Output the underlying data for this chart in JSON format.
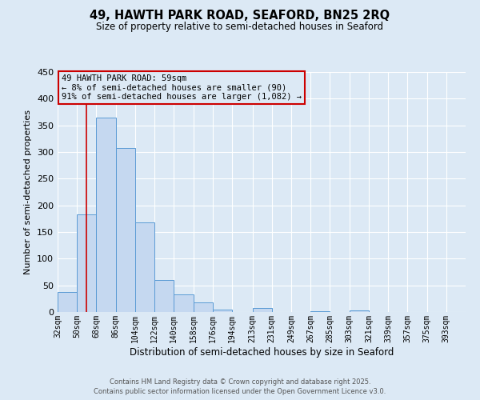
{
  "title": "49, HAWTH PARK ROAD, SEAFORD, BN25 2RQ",
  "subtitle": "Size of property relative to semi-detached houses in Seaford",
  "xlabel": "Distribution of semi-detached houses by size in Seaford",
  "ylabel": "Number of semi-detached properties",
  "bin_labels": [
    "32sqm",
    "50sqm",
    "68sqm",
    "86sqm",
    "104sqm",
    "122sqm",
    "140sqm",
    "158sqm",
    "176sqm",
    "194sqm",
    "213sqm",
    "231sqm",
    "249sqm",
    "267sqm",
    "285sqm",
    "303sqm",
    "321sqm",
    "339sqm",
    "357sqm",
    "375sqm",
    "393sqm"
  ],
  "bin_edges": [
    32,
    50,
    68,
    86,
    104,
    122,
    140,
    158,
    176,
    194,
    213,
    231,
    249,
    267,
    285,
    303,
    321,
    339,
    357,
    375,
    393,
    411
  ],
  "bar_heights": [
    38,
    183,
    365,
    307,
    168,
    60,
    33,
    18,
    5,
    0,
    8,
    0,
    0,
    2,
    0,
    3,
    0,
    0,
    0,
    0,
    0
  ],
  "bar_color": "#c5d8f0",
  "bar_edge_color": "#5b9bd5",
  "property_size": 59,
  "red_line_color": "#cc0000",
  "annotation_title": "49 HAWTH PARK ROAD: 59sqm",
  "annotation_line2": "← 8% of semi-detached houses are smaller (90)",
  "annotation_line3": "91% of semi-detached houses are larger (1,082) →",
  "annotation_box_edge": "#cc0000",
  "ylim": [
    0,
    450
  ],
  "background_color": "#dce9f5",
  "grid_color": "#ffffff",
  "footer1": "Contains HM Land Registry data © Crown copyright and database right 2025.",
  "footer2": "Contains public sector information licensed under the Open Government Licence v3.0."
}
